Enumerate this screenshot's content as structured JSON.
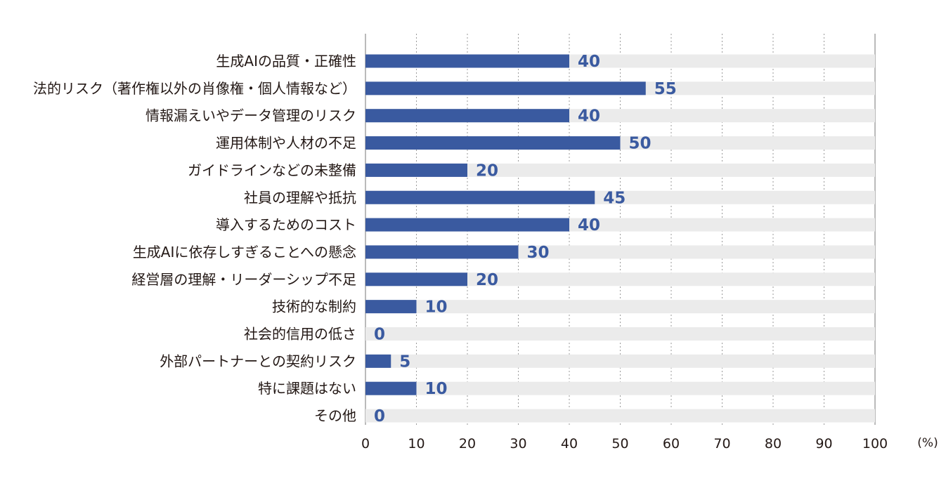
{
  "chart_data": {
    "type": "bar",
    "orientation": "horizontal",
    "categories": [
      "生成AIの品質・正確性",
      "法的リスク（著作権以外の肖像権・個人情報など）",
      "情報漏えいやデータ管理のリスク",
      "運用体制や人材の不足",
      "ガイドラインなどの未整備",
      "社員の理解や抵抗",
      "導入するためのコスト",
      "生成AIに依存しすぎることへの懸念",
      "経営層の理解・リーダーシップ不足",
      "技術的な制約",
      "社会的信用の低さ",
      "外部パートナーとの契約リスク",
      "特に課題はない",
      "その他"
    ],
    "values": [
      40,
      55,
      40,
      50,
      20,
      45,
      40,
      30,
      20,
      10,
      0,
      5,
      10,
      0
    ],
    "xlim": [
      0,
      100
    ],
    "x_ticks": [
      0,
      10,
      20,
      30,
      40,
      50,
      60,
      70,
      80,
      90,
      100
    ],
    "unit_label": "(%)",
    "grid": "vertical-dotted",
    "colors": {
      "bar": "#3a5aa0",
      "track": "#ebebeb",
      "value_text": "#3a5aa0",
      "text": "#231815",
      "grid": "#9a9a9a"
    }
  }
}
